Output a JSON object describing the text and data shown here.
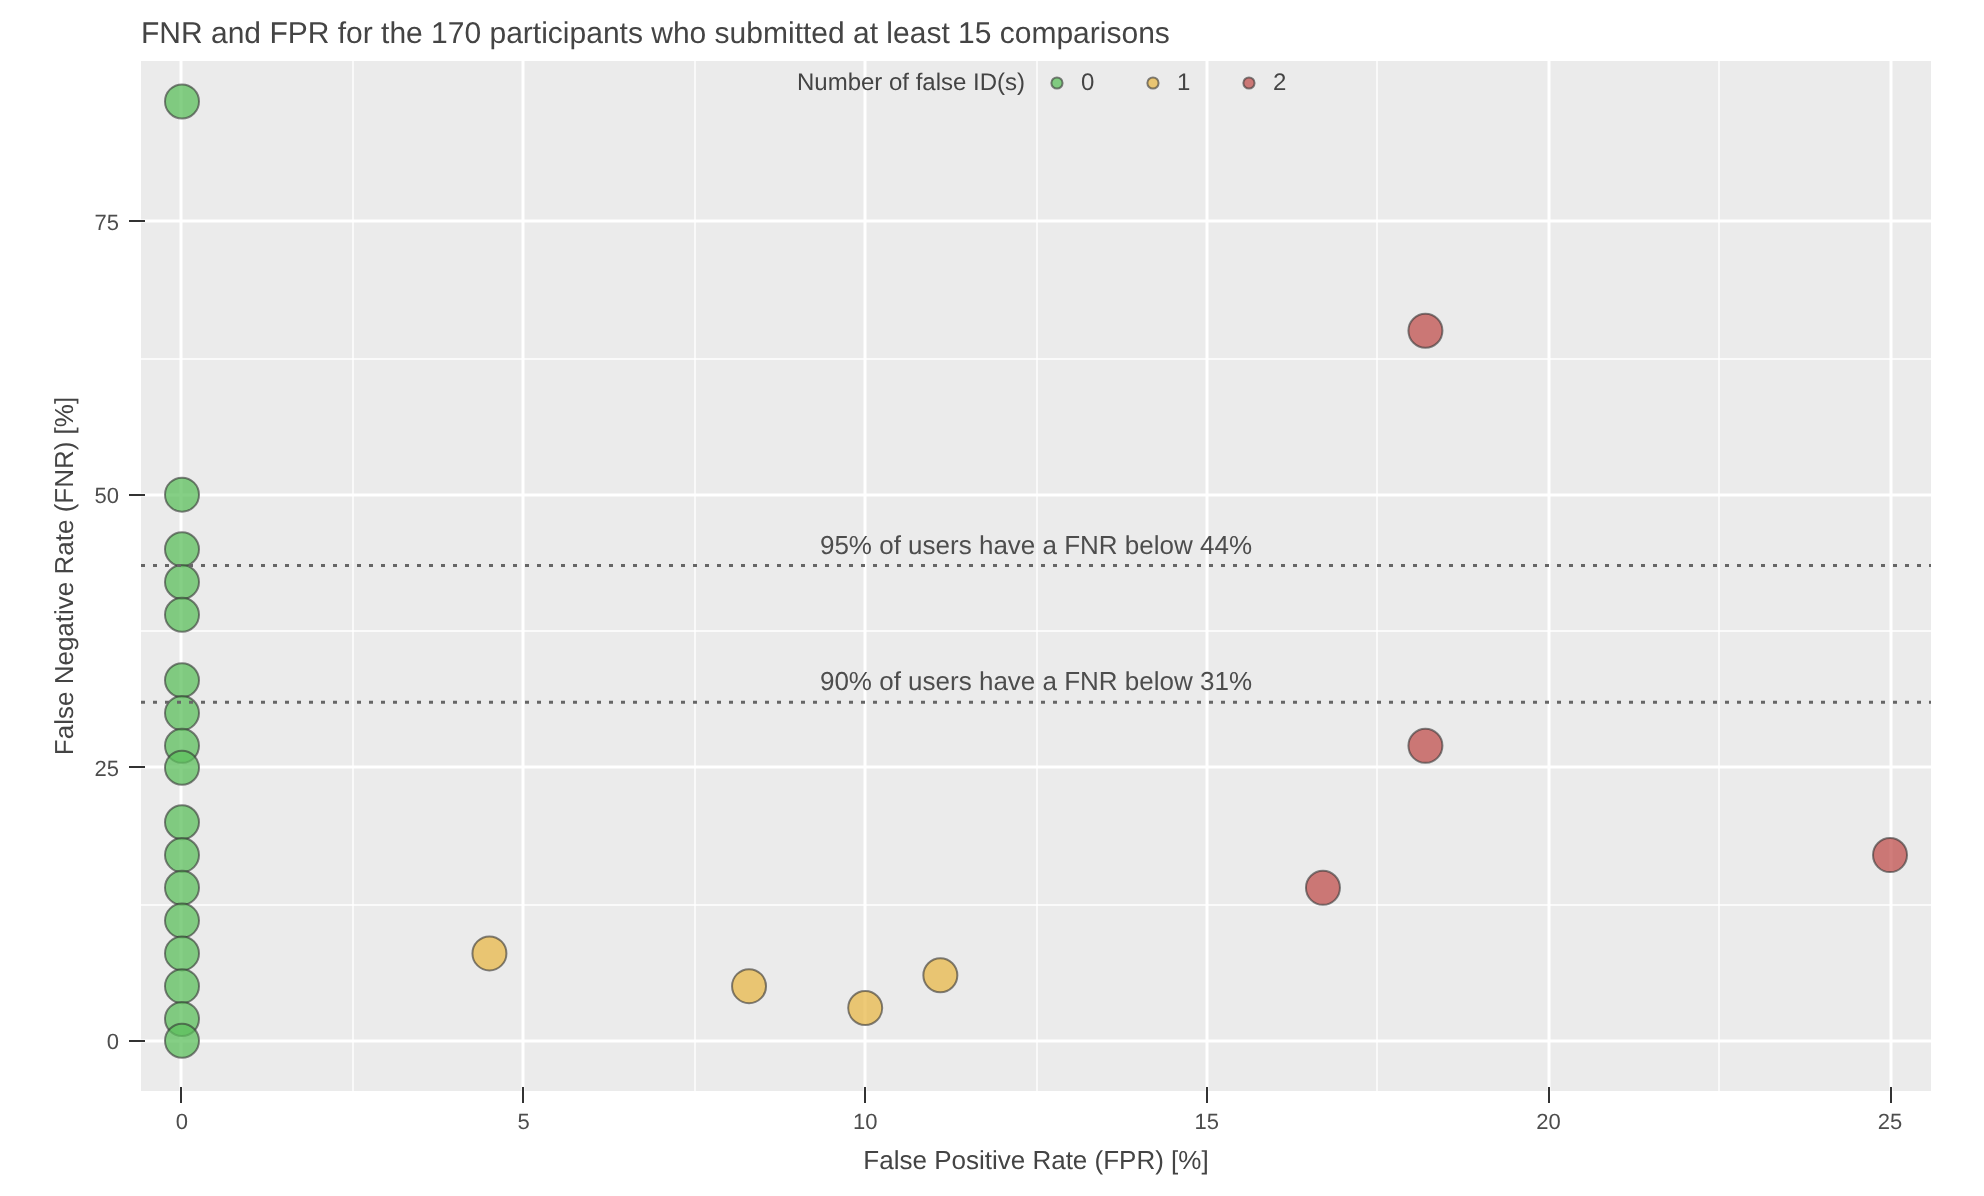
{
  "chart_data": {
    "type": "scatter",
    "title": "FNR and FPR for the 170 participants who submitted at least 15 comparisons",
    "xlabel": "False Positive Rate (FPR) [%]",
    "ylabel": "False Negative Rate (FNR) [%]",
    "legend_title": "Number of false ID(s)",
    "legend": "top",
    "grid": true,
    "marker": "circle",
    "xlim": [
      -0.6,
      25.6
    ],
    "ylim": [
      -4.6,
      89.7
    ],
    "xticks": [
      0,
      5,
      10,
      15,
      20,
      25
    ],
    "yticks": [
      0,
      25,
      50,
      75
    ],
    "series": [
      {
        "name": "0",
        "color": "#5cbf5c",
        "x": [
          0,
          0,
          0,
          0,
          0,
          0,
          0,
          0,
          0,
          0,
          0,
          0,
          0,
          0,
          0,
          0,
          0
        ],
        "values": [
          86,
          50,
          45,
          42,
          39,
          33,
          30,
          27,
          25,
          20,
          17,
          14,
          11,
          8,
          5,
          2,
          0
        ]
      },
      {
        "name": "1",
        "color": "#e8b84a",
        "x": [
          4.5,
          8.3,
          10,
          11.1
        ],
        "values": [
          8,
          5,
          3,
          6
        ]
      },
      {
        "name": "2",
        "color": "#c0504d",
        "x": [
          16.7,
          18.2,
          18.2,
          25
        ],
        "values": [
          14,
          65,
          27,
          17
        ]
      }
    ],
    "ref_lines": [
      {
        "axis": "y",
        "value": 43.5,
        "label": "95% of users have a FNR below 44%",
        "line_style": "dotted"
      },
      {
        "axis": "y",
        "value": 31,
        "label": "90% of users have a FNR below 31%",
        "line_style": "dotted"
      }
    ]
  }
}
